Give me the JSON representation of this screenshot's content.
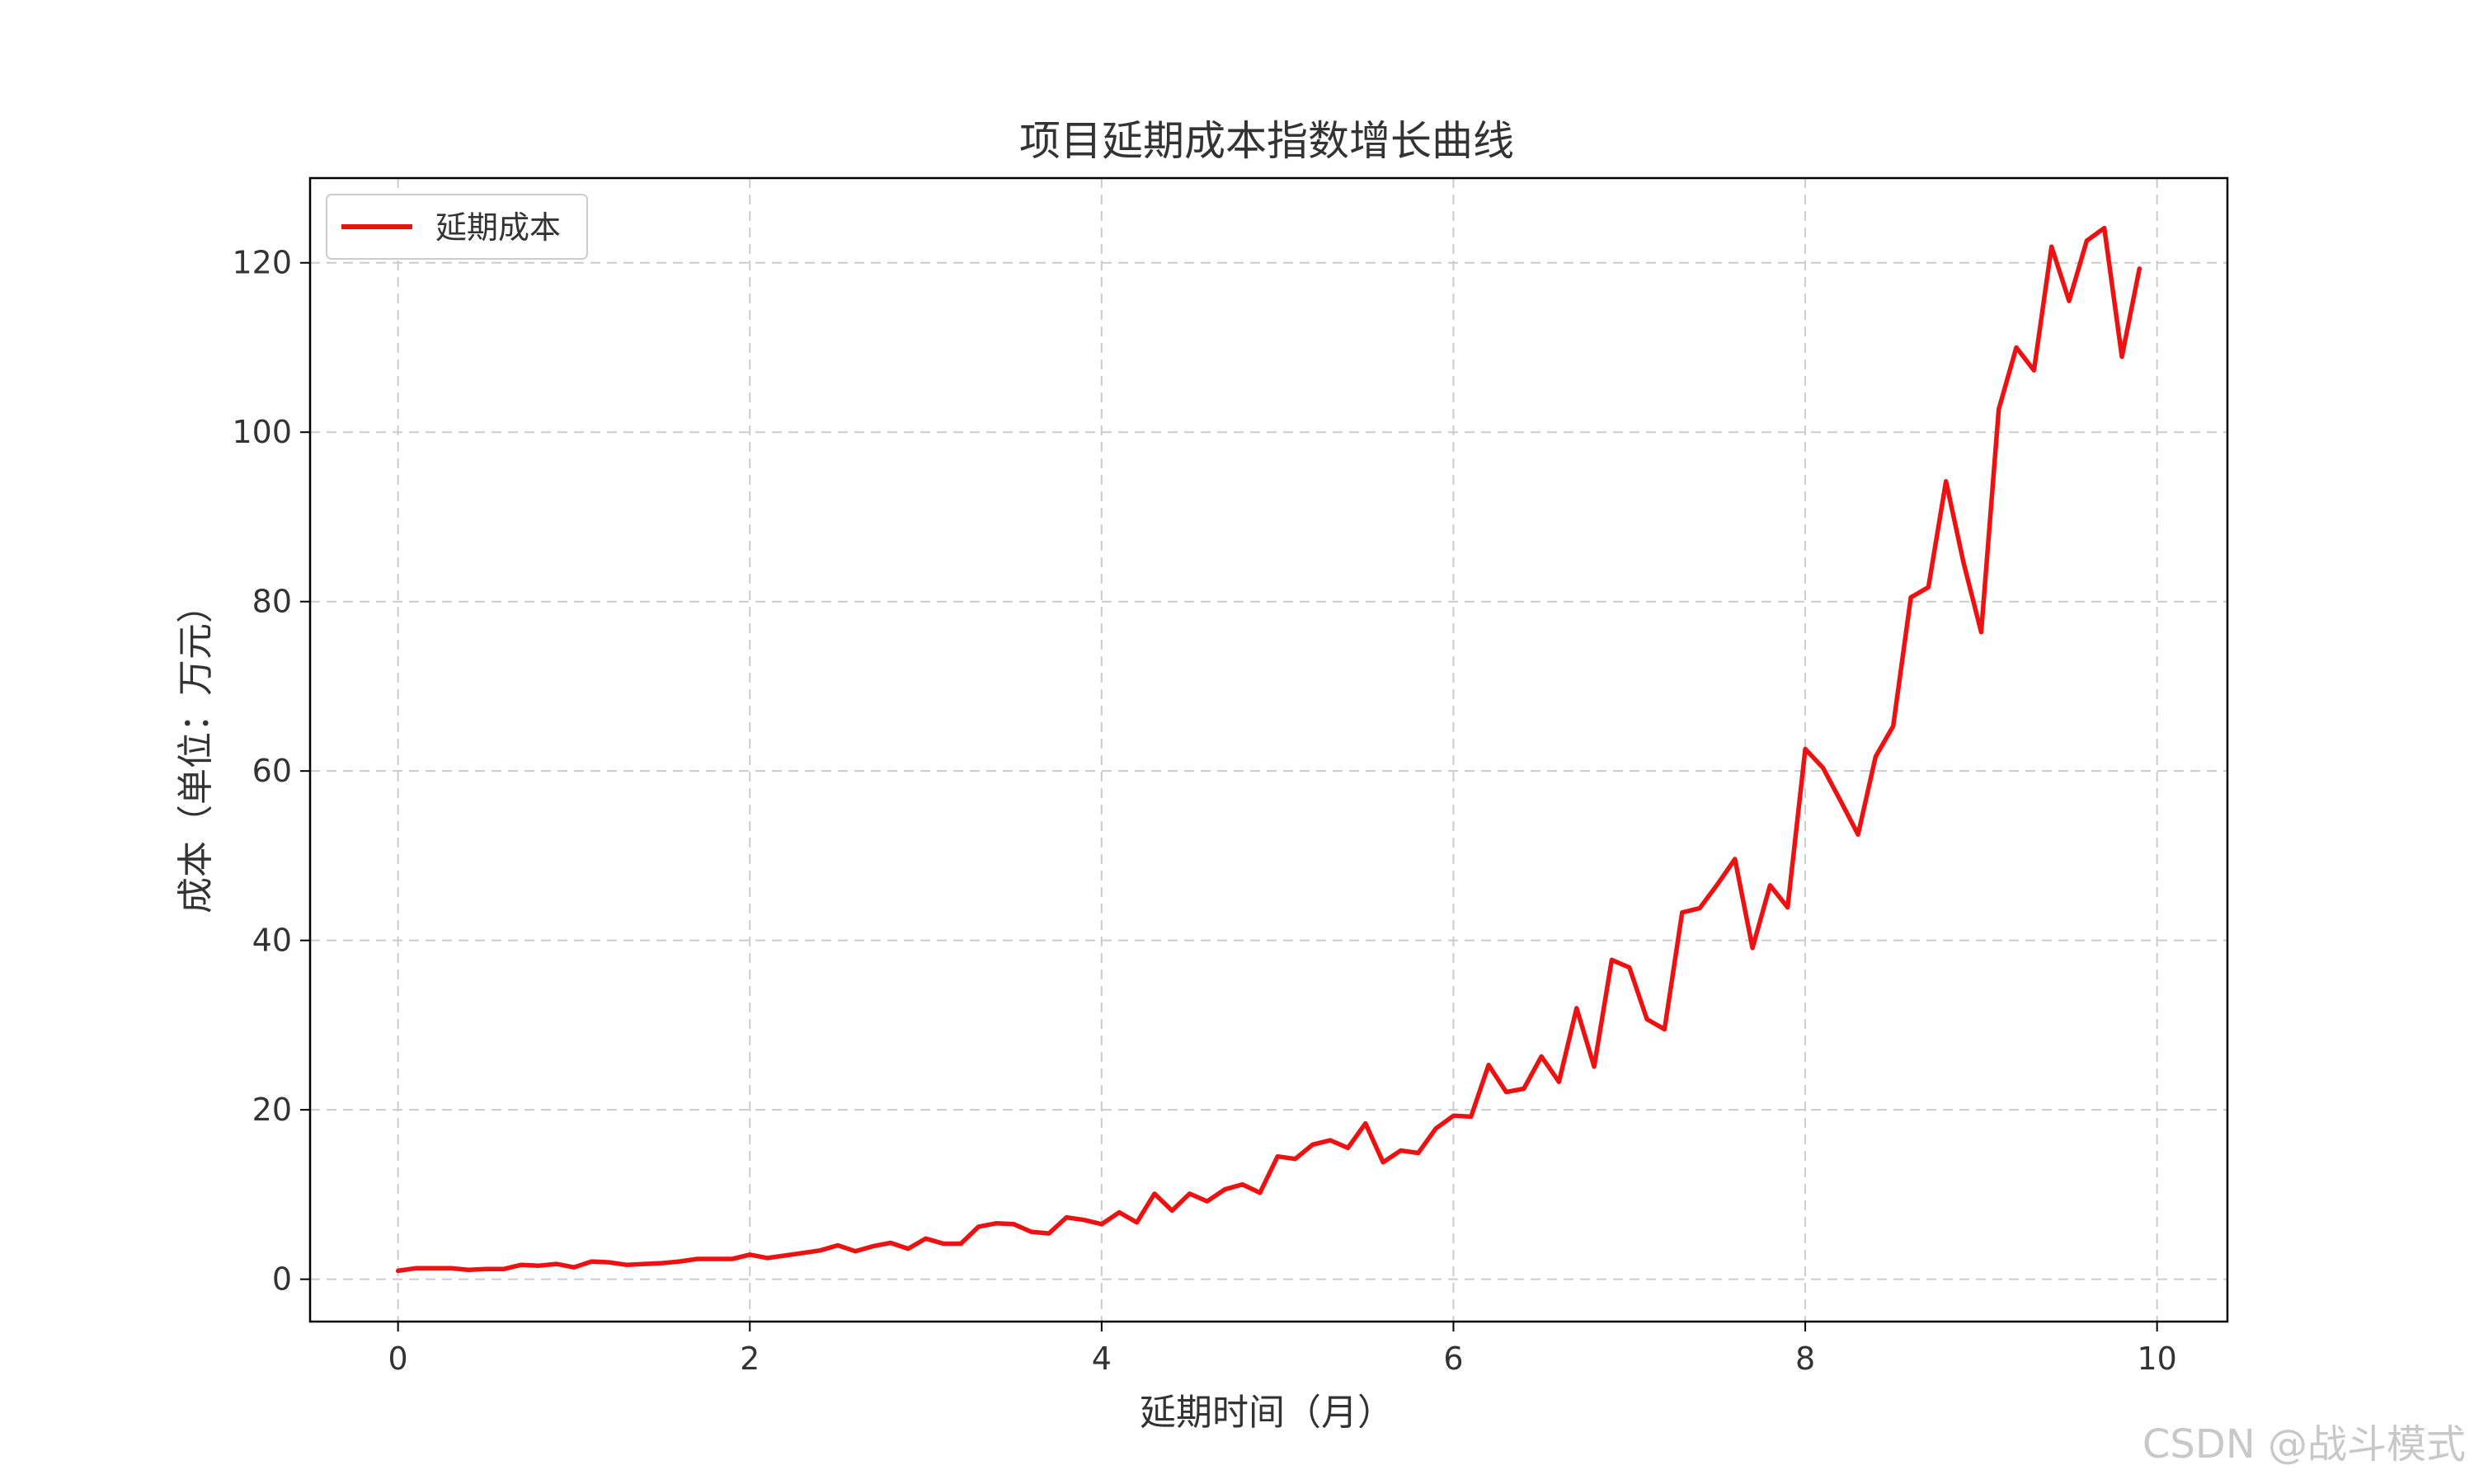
{
  "chart_data": {
    "type": "line",
    "title": "项目延期成本指数增长曲线",
    "xlabel": "延期时间（月）",
    "ylabel": "成本（单位：万元）",
    "xlim": [
      -0.5,
      10.4
    ],
    "ylim": [
      -5,
      130
    ],
    "x_ticks": [
      0,
      2,
      4,
      6,
      8,
      10
    ],
    "y_ticks": [
      0,
      20,
      40,
      60,
      80,
      100,
      120
    ],
    "grid": true,
    "legend_position": "top-left",
    "series": [
      {
        "name": "延期成本",
        "color": "#ee1111",
        "x": [
          0,
          0.1,
          0.2,
          0.3,
          0.4,
          0.5,
          0.6,
          0.7,
          0.8,
          0.9,
          1.0,
          1.1,
          1.2,
          1.3,
          1.4,
          1.5,
          1.6,
          1.7,
          1.8,
          1.9,
          2.0,
          2.1,
          2.2,
          2.3,
          2.4,
          2.5,
          2.6,
          2.7,
          2.8,
          2.9,
          3.0,
          3.1,
          3.2,
          3.3,
          3.4,
          3.5,
          3.6,
          3.7,
          3.8,
          3.9,
          4.0,
          4.1,
          4.2,
          4.3,
          4.4,
          4.5,
          4.6,
          4.7,
          4.8,
          4.9,
          5.0,
          5.1,
          5.2,
          5.3,
          5.4,
          5.5,
          5.6,
          5.7,
          5.8,
          5.9,
          6.0,
          6.1,
          6.2,
          6.3,
          6.4,
          6.5,
          6.6,
          6.7,
          6.8,
          6.9,
          7.0,
          7.1,
          7.2,
          7.3,
          7.4,
          7.5,
          7.6,
          7.7,
          7.8,
          7.9,
          8.0,
          8.1,
          8.2,
          8.3,
          8.4,
          8.5,
          8.6,
          8.7,
          8.8,
          8.9,
          9.0,
          9.1,
          9.2,
          9.3,
          9.4,
          9.5,
          9.6,
          9.7,
          9.8,
          9.9
        ],
        "values": [
          1.0,
          1.3,
          1.3,
          1.3,
          1.1,
          1.2,
          1.2,
          1.7,
          1.6,
          1.8,
          1.4,
          2.1,
          2.0,
          1.7,
          1.8,
          1.9,
          2.1,
          2.4,
          2.4,
          2.4,
          2.9,
          2.5,
          2.8,
          3.1,
          3.4,
          4.0,
          3.3,
          3.9,
          4.3,
          3.6,
          4.8,
          4.2,
          4.2,
          6.2,
          6.6,
          6.5,
          5.6,
          5.4,
          7.3,
          7.0,
          6.5,
          7.9,
          6.7,
          10.1,
          8.1,
          10.1,
          9.2,
          10.6,
          11.2,
          10.2,
          14.5,
          14.2,
          15.9,
          16.4,
          15.5,
          18.4,
          13.8,
          15.2,
          14.9,
          17.8,
          19.3,
          19.2,
          25.3,
          22.1,
          22.5,
          26.3,
          23.3,
          32.0,
          25.1,
          37.7,
          36.8,
          30.7,
          29.5,
          43.3,
          43.8,
          46.6,
          49.6,
          39.1,
          46.5,
          43.9,
          62.6,
          60.4,
          56.5,
          52.5,
          61.7,
          65.3,
          80.5,
          81.7,
          94.2,
          84.6,
          76.4,
          102.7,
          110.0,
          107.3,
          121.9,
          115.5,
          122.6,
          124.1,
          108.9,
          119.3
        ]
      }
    ]
  },
  "watermark": "CSDN @战斗模式"
}
